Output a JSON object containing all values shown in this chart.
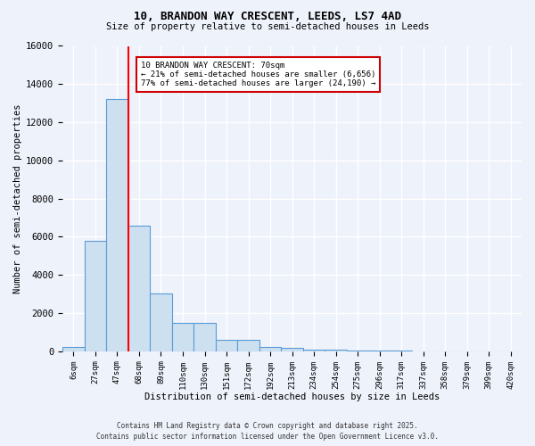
{
  "title_line1": "10, BRANDON WAY CRESCENT, LEEDS, LS7 4AD",
  "title_line2": "Size of property relative to semi-detached houses in Leeds",
  "xlabel": "Distribution of semi-detached houses by size in Leeds",
  "ylabel": "Number of semi-detached properties",
  "bin_labels": [
    "6sqm",
    "27sqm",
    "47sqm",
    "68sqm",
    "89sqm",
    "110sqm",
    "130sqm",
    "151sqm",
    "172sqm",
    "192sqm",
    "213sqm",
    "234sqm",
    "254sqm",
    "275sqm",
    "296sqm",
    "317sqm",
    "337sqm",
    "358sqm",
    "379sqm",
    "399sqm",
    "420sqm"
  ],
  "bar_values": [
    250,
    5800,
    13200,
    6600,
    3050,
    1480,
    1480,
    620,
    620,
    230,
    200,
    110,
    80,
    50,
    30,
    20,
    10,
    5,
    5,
    5,
    0
  ],
  "bar_color": "#cce0f0",
  "bar_edge_color": "#5b9bd5",
  "red_line_bin_index": 3,
  "annotation_text_line1": "10 BRANDON WAY CRESCENT: 70sqm",
  "annotation_text_line2": "← 21% of semi-detached houses are smaller (6,656)",
  "annotation_text_line3": "77% of semi-detached houses are larger (24,190) →",
  "footer_line1": "Contains HM Land Registry data © Crown copyright and database right 2025.",
  "footer_line2": "Contains public sector information licensed under the Open Government Licence v3.0.",
  "ylim": [
    0,
    16000
  ],
  "yticks": [
    0,
    2000,
    4000,
    6000,
    8000,
    10000,
    12000,
    14000,
    16000
  ],
  "background_color": "#eef2fb",
  "plot_bg_color": "#eef2fb",
  "grid_color": "#ffffff",
  "annotation_box_facecolor": "#ffffff",
  "annotation_box_edgecolor": "#cc0000"
}
